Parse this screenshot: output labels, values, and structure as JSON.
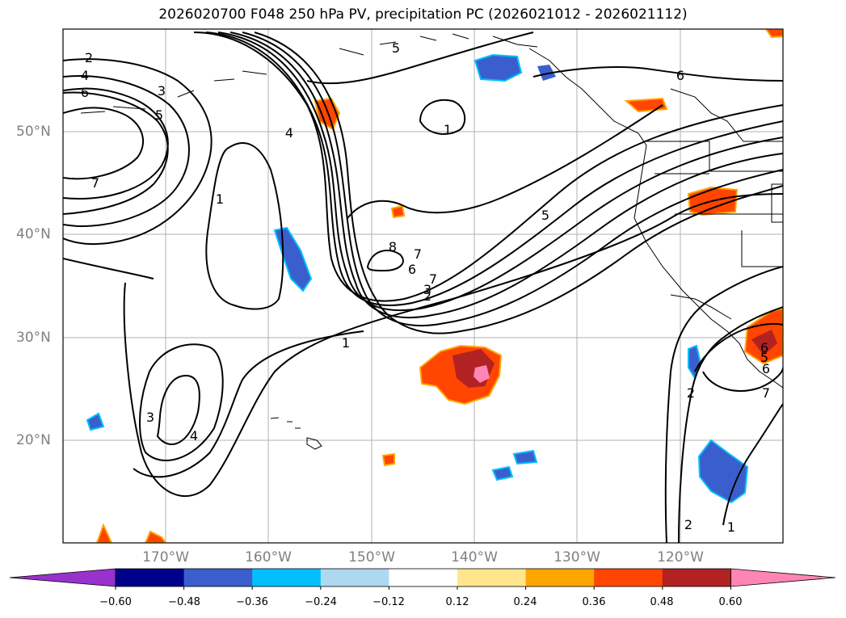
{
  "title": "2026020700 F048 250 hPa PV, precipitation PC (2026021012 - 2026021112)",
  "map": {
    "lon_range": [
      -180,
      -110
    ],
    "lat_range": [
      10,
      60
    ],
    "lat_labels": [
      {
        "lat": 50,
        "label": "50°N"
      },
      {
        "lat": 40,
        "label": "40°N"
      },
      {
        "lat": 30,
        "label": "30°N"
      },
      {
        "lat": 20,
        "label": "20°N"
      }
    ],
    "lon_labels": [
      {
        "lon": -170,
        "label": "170°W"
      },
      {
        "lon": -160,
        "label": "160°W"
      },
      {
        "lon": -150,
        "label": "150°W"
      },
      {
        "lon": -140,
        "label": "140°W"
      },
      {
        "lon": -130,
        "label": "130°W"
      },
      {
        "lon": -120,
        "label": "120°W"
      }
    ],
    "contour_labels": [
      "2",
      "4",
      "6",
      "7",
      "3",
      "5",
      "1",
      "4",
      "5",
      "6",
      "7",
      "8",
      "6",
      "7",
      "3",
      "2",
      "5",
      "1",
      "3",
      "4",
      "1",
      "2",
      "2",
      "1",
      "7",
      "6",
      "5",
      "6"
    ]
  },
  "colorbar": {
    "colors": [
      "#9932CC",
      "#00008B",
      "#3A5FCD",
      "#00BFFF",
      "#ADD8F0",
      "#FFFFFF",
      "#FFE68C",
      "#FFA500",
      "#FF4500",
      "#B22222",
      "#FF86B4"
    ],
    "tick_labels": [
      "−0.60",
      "−0.48",
      "−0.36",
      "−0.24",
      "−0.12",
      "0.12",
      "0.24",
      "0.36",
      "0.48",
      "0.60"
    ]
  }
}
